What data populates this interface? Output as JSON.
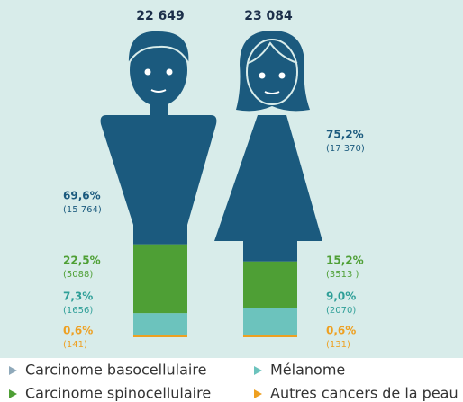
{
  "chart_data": {
    "type": "pictogram",
    "totals": [
      22649,
      23084
    ],
    "total_labels": [
      "22 649",
      "23 084"
    ],
    "series": [
      {
        "name": "Carcinome basocellulaire",
        "color": "#1b5a7e",
        "values": [
          69.6,
          75.2
        ],
        "value_labels": [
          "69,6%",
          "75,2%"
        ],
        "counts": [
          15764,
          17370
        ],
        "count_labels": [
          "(15 764)",
          "(17 370)"
        ]
      },
      {
        "name": "Carcinome spinocellulaire",
        "color": "#4e9f35",
        "values": [
          22.5,
          15.2
        ],
        "value_labels": [
          "22,5%",
          "15,2%"
        ],
        "counts": [
          5088,
          3513
        ],
        "count_labels": [
          "(5088)",
          "(3513 )"
        ]
      },
      {
        "name": "Mélanome",
        "color": "#6cc3bd",
        "values": [
          7.3,
          9.0
        ],
        "value_labels": [
          "7,3%",
          "9,0%"
        ],
        "counts": [
          1656,
          2070
        ],
        "count_labels": [
          "(1656)",
          "(2070)"
        ]
      },
      {
        "name": "Autres cancers de la peau",
        "color": "#eea021",
        "values": [
          0.6,
          0.6
        ],
        "value_labels": [
          "0,6%",
          "0,6%"
        ],
        "counts": [
          141,
          131
        ],
        "count_labels": [
          "(141)",
          "(131)"
        ]
      }
    ]
  }
}
